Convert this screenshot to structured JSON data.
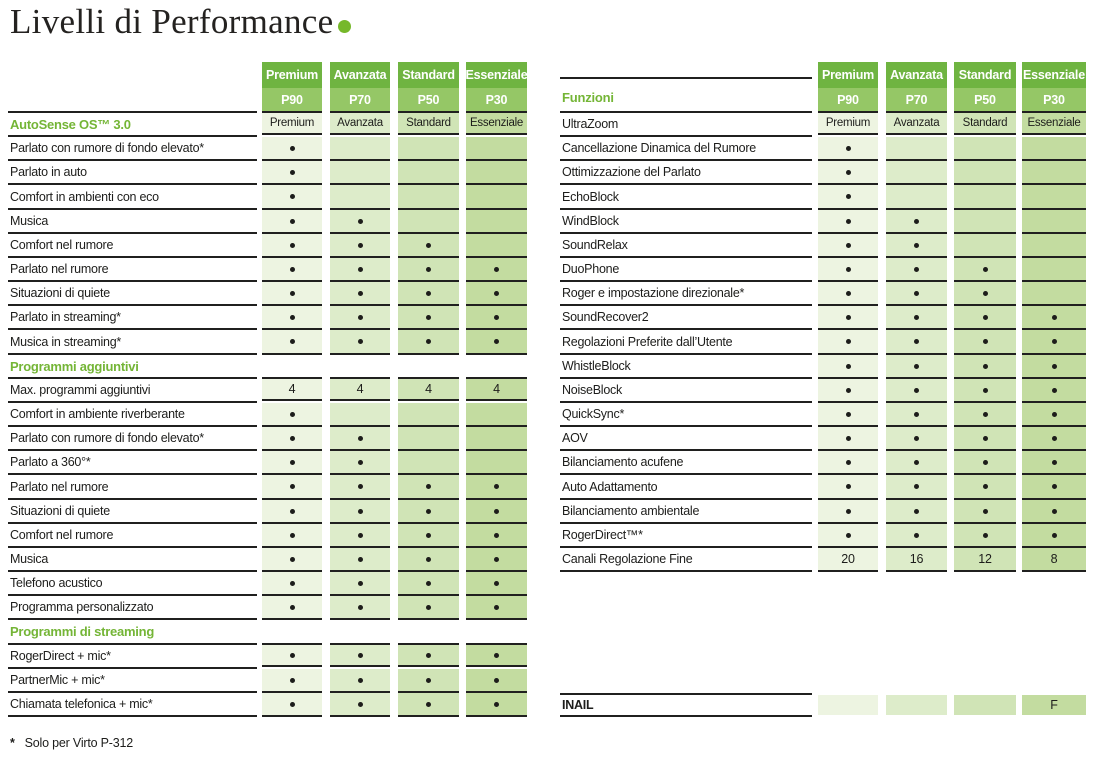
{
  "title": {
    "text": "Livelli di Performance"
  },
  "footnote": {
    "marker": "*",
    "text": "Solo per Virto P-312"
  },
  "columns": [
    {
      "name": "Premium",
      "code": "P90"
    },
    {
      "name": "Avanzata",
      "code": "P70"
    },
    {
      "name": "Standard",
      "code": "P50"
    },
    {
      "name": "Essenziale",
      "code": "P30"
    }
  ],
  "colors": {
    "header_top": "#6fb441",
    "header_bottom": "#95c766",
    "column_cells": [
      "#edf4e1",
      "#ddecca",
      "#d0e4b6",
      "#c3dca0"
    ],
    "section_text": "#74b536",
    "line": "#20201f",
    "text": "#1d1d1b",
    "title_dot": "#76b82a"
  },
  "left_table": {
    "rows": [
      {
        "label": "AutoSense OS™ 3.0",
        "style": "green",
        "values": [
          "Premium",
          "Avanzata",
          "Standard",
          "Essenziale"
        ]
      },
      {
        "label": "Parlato con rumore di fondo elevato*",
        "values": [
          "●",
          "",
          "",
          ""
        ]
      },
      {
        "label": "Parlato in auto",
        "values": [
          "●",
          "",
          "",
          ""
        ]
      },
      {
        "label": "Comfort in ambienti con eco",
        "values": [
          "●",
          "",
          "",
          ""
        ]
      },
      {
        "label": "Musica",
        "values": [
          "●",
          "●",
          "",
          ""
        ]
      },
      {
        "label": "Comfort nel rumore",
        "values": [
          "●",
          "●",
          "●",
          ""
        ]
      },
      {
        "label": "Parlato nel rumore",
        "values": [
          "●",
          "●",
          "●",
          "●"
        ]
      },
      {
        "label": "Situazioni di quiete",
        "values": [
          "●",
          "●",
          "●",
          "●"
        ]
      },
      {
        "label": "Parlato in streaming*",
        "values": [
          "●",
          "●",
          "●",
          "●"
        ]
      },
      {
        "label": "Musica in streaming*",
        "values": [
          "●",
          "●",
          "●",
          "●"
        ]
      },
      {
        "label": "Programmi aggiuntivi",
        "style": "green",
        "values": null
      },
      {
        "label": "Max. programmi aggiuntivi",
        "values": [
          "4",
          "4",
          "4",
          "4"
        ]
      },
      {
        "label": "Comfort in ambiente riverberante",
        "values": [
          "●",
          "",
          "",
          ""
        ]
      },
      {
        "label": "Parlato con rumore di fondo elevato*",
        "values": [
          "●",
          "●",
          "",
          ""
        ]
      },
      {
        "label": "Parlato a 360°*",
        "values": [
          "●",
          "●",
          "",
          ""
        ]
      },
      {
        "label": "Parlato nel rumore",
        "values": [
          "●",
          "●",
          "●",
          "●"
        ]
      },
      {
        "label": "Situazioni di quiete",
        "values": [
          "●",
          "●",
          "●",
          "●"
        ]
      },
      {
        "label": "Comfort nel rumore",
        "values": [
          "●",
          "●",
          "●",
          "●"
        ]
      },
      {
        "label": "Musica",
        "values": [
          "●",
          "●",
          "●",
          "●"
        ]
      },
      {
        "label": "Telefono acustico",
        "values": [
          "●",
          "●",
          "●",
          "●"
        ]
      },
      {
        "label": "Programma personalizzato",
        "values": [
          "●",
          "●",
          "●",
          "●"
        ]
      },
      {
        "label": "Programmi di streaming",
        "style": "green",
        "values": null
      },
      {
        "label": "RogerDirect + mic*",
        "values": [
          "●",
          "●",
          "●",
          "●"
        ]
      },
      {
        "label": "PartnerMic + mic*",
        "values": [
          "●",
          "●",
          "●",
          "●"
        ]
      },
      {
        "label": "Chiamata telefonica + mic*",
        "values": [
          "●",
          "●",
          "●",
          "●"
        ]
      }
    ]
  },
  "right_table": {
    "section_label": "Funzioni",
    "rows": [
      {
        "label": "UltraZoom",
        "values": [
          "Premium",
          "Avanzata",
          "Standard",
          "Essenziale"
        ]
      },
      {
        "label": "Cancellazione Dinamica del Rumore",
        "values": [
          "●",
          "",
          "",
          ""
        ]
      },
      {
        "label": "Ottimizzazione del Parlato",
        "values": [
          "●",
          "",
          "",
          ""
        ]
      },
      {
        "label": "EchoBlock",
        "values": [
          "●",
          "",
          "",
          ""
        ]
      },
      {
        "label": "WindBlock",
        "values": [
          "●",
          "●",
          "",
          ""
        ]
      },
      {
        "label": "SoundRelax",
        "values": [
          "●",
          "●",
          "",
          ""
        ]
      },
      {
        "label": "DuoPhone",
        "values": [
          "●",
          "●",
          "●",
          ""
        ]
      },
      {
        "label": "Roger e impostazione direzionale*",
        "values": [
          "●",
          "●",
          "●",
          ""
        ]
      },
      {
        "label": "SoundRecover2",
        "values": [
          "●",
          "●",
          "●",
          "●"
        ]
      },
      {
        "label": "Regolazioni Preferite dall’Utente",
        "values": [
          "●",
          "●",
          "●",
          "●"
        ]
      },
      {
        "label": "WhistleBlock",
        "values": [
          "●",
          "●",
          "●",
          "●"
        ]
      },
      {
        "label": "NoiseBlock",
        "values": [
          "●",
          "●",
          "●",
          "●"
        ]
      },
      {
        "label": "QuickSync*",
        "values": [
          "●",
          "●",
          "●",
          "●"
        ]
      },
      {
        "label": "AOV",
        "values": [
          "●",
          "●",
          "●",
          "●"
        ]
      },
      {
        "label": "Bilanciamento acufene",
        "values": [
          "●",
          "●",
          "●",
          "●"
        ]
      },
      {
        "label": "Auto Adattamento",
        "values": [
          "●",
          "●",
          "●",
          "●"
        ]
      },
      {
        "label": "Bilanciamento ambientale",
        "values": [
          "●",
          "●",
          "●",
          "●"
        ]
      },
      {
        "label": "RogerDirect™*",
        "values": [
          "●",
          "●",
          "●",
          "●"
        ]
      },
      {
        "label": "Canali Regolazione Fine",
        "values": [
          "20",
          "16",
          "12",
          "8"
        ]
      }
    ],
    "inail_row": {
      "label": "INAIL",
      "values": [
        "",
        "",
        "",
        "F"
      ]
    }
  }
}
